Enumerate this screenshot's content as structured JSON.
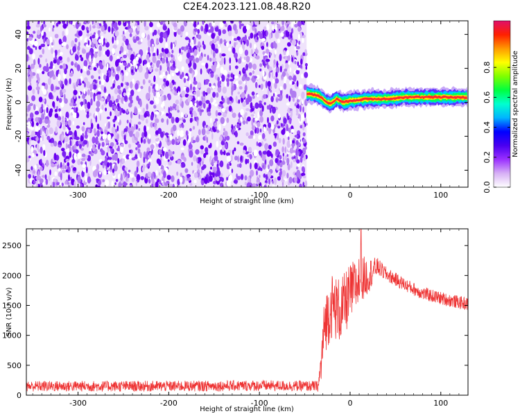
{
  "title": "C2E4.2023.121.08.48.R20",
  "chart_data": [
    {
      "type": "heatmap",
      "xlabel": "Height of straight line (km)",
      "ylabel": "Frequency (Hz)",
      "xlim": [
        -357,
        130
      ],
      "ylim": [
        -50,
        48
      ],
      "xticks": [
        -300,
        -200,
        -100,
        0,
        100
      ],
      "xtick_labels": [
        "-300",
        "-200",
        "-100",
        "0",
        "100"
      ],
      "yticks": [
        -40,
        -20,
        0,
        20,
        40
      ],
      "ytick_labels": [
        "-40",
        "-20",
        "0",
        "20",
        "40"
      ],
      "noise_region_x": [
        -357,
        -48
      ],
      "signal_band": {
        "x_range": [
          -48,
          130
        ],
        "center_freq_hz": [
          [
            -45,
            5
          ],
          [
            -35,
            4
          ],
          [
            -28,
            1
          ],
          [
            -22,
            -1
          ],
          [
            -15,
            2
          ],
          [
            -8,
            0
          ],
          [
            0,
            1
          ],
          [
            20,
            2
          ],
          [
            40,
            2
          ],
          [
            60,
            3
          ],
          [
            80,
            3
          ],
          [
            100,
            3
          ],
          [
            130,
            3
          ]
        ]
      },
      "colorbar": {
        "label": "Normalized spectral amplitude",
        "range": [
          0,
          1
        ],
        "ticks": [
          0.0,
          0.2,
          0.4,
          0.6,
          0.8
        ],
        "tick_labels": [
          "0.0",
          "0.2",
          "0.4",
          "0.6",
          "0.8"
        ],
        "colors": [
          "#ffffff",
          "#d7b0f5",
          "#9b30ff",
          "#4a00f0",
          "#0000ff",
          "#00b4ff",
          "#00ffd0",
          "#00ff40",
          "#7fff00",
          "#ffff00",
          "#ff9900",
          "#ff2000",
          "#e0106a"
        ]
      },
      "grid": false
    },
    {
      "type": "line",
      "xlabel": "Height of straight line (km)",
      "ylabel": "SNR (10 * v/v)",
      "xlim": [
        -357,
        130
      ],
      "ylim": [
        0,
        2780
      ],
      "xticks": [
        -300,
        -200,
        -100,
        0,
        100
      ],
      "xtick_labels": [
        "-300",
        "-200",
        "-100",
        "0",
        "100"
      ],
      "yticks": [
        0,
        500,
        1000,
        1500,
        2000,
        2500
      ],
      "ytick_labels": [
        "0",
        "500",
        "1000",
        "1500",
        "2000",
        "2500"
      ],
      "color": "#ee3333",
      "envelope": {
        "x": [
          -357,
          -300,
          -200,
          -100,
          -35,
          -32,
          -28,
          -20,
          -10,
          0,
          10,
          20,
          30,
          40,
          60,
          80,
          100,
          120,
          130
        ],
        "baseline": [
          150,
          150,
          150,
          160,
          150,
          500,
          1200,
          1500,
          1400,
          1700,
          1900,
          2000,
          2150,
          2020,
          1850,
          1700,
          1620,
          1550,
          1520
        ],
        "spread": [
          90,
          90,
          90,
          90,
          90,
          350,
          500,
          550,
          550,
          500,
          450,
          300,
          150,
          120,
          110,
          110,
          110,
          110,
          110
        ]
      },
      "peak": [
        12,
        2780
      ],
      "grid": false
    }
  ]
}
